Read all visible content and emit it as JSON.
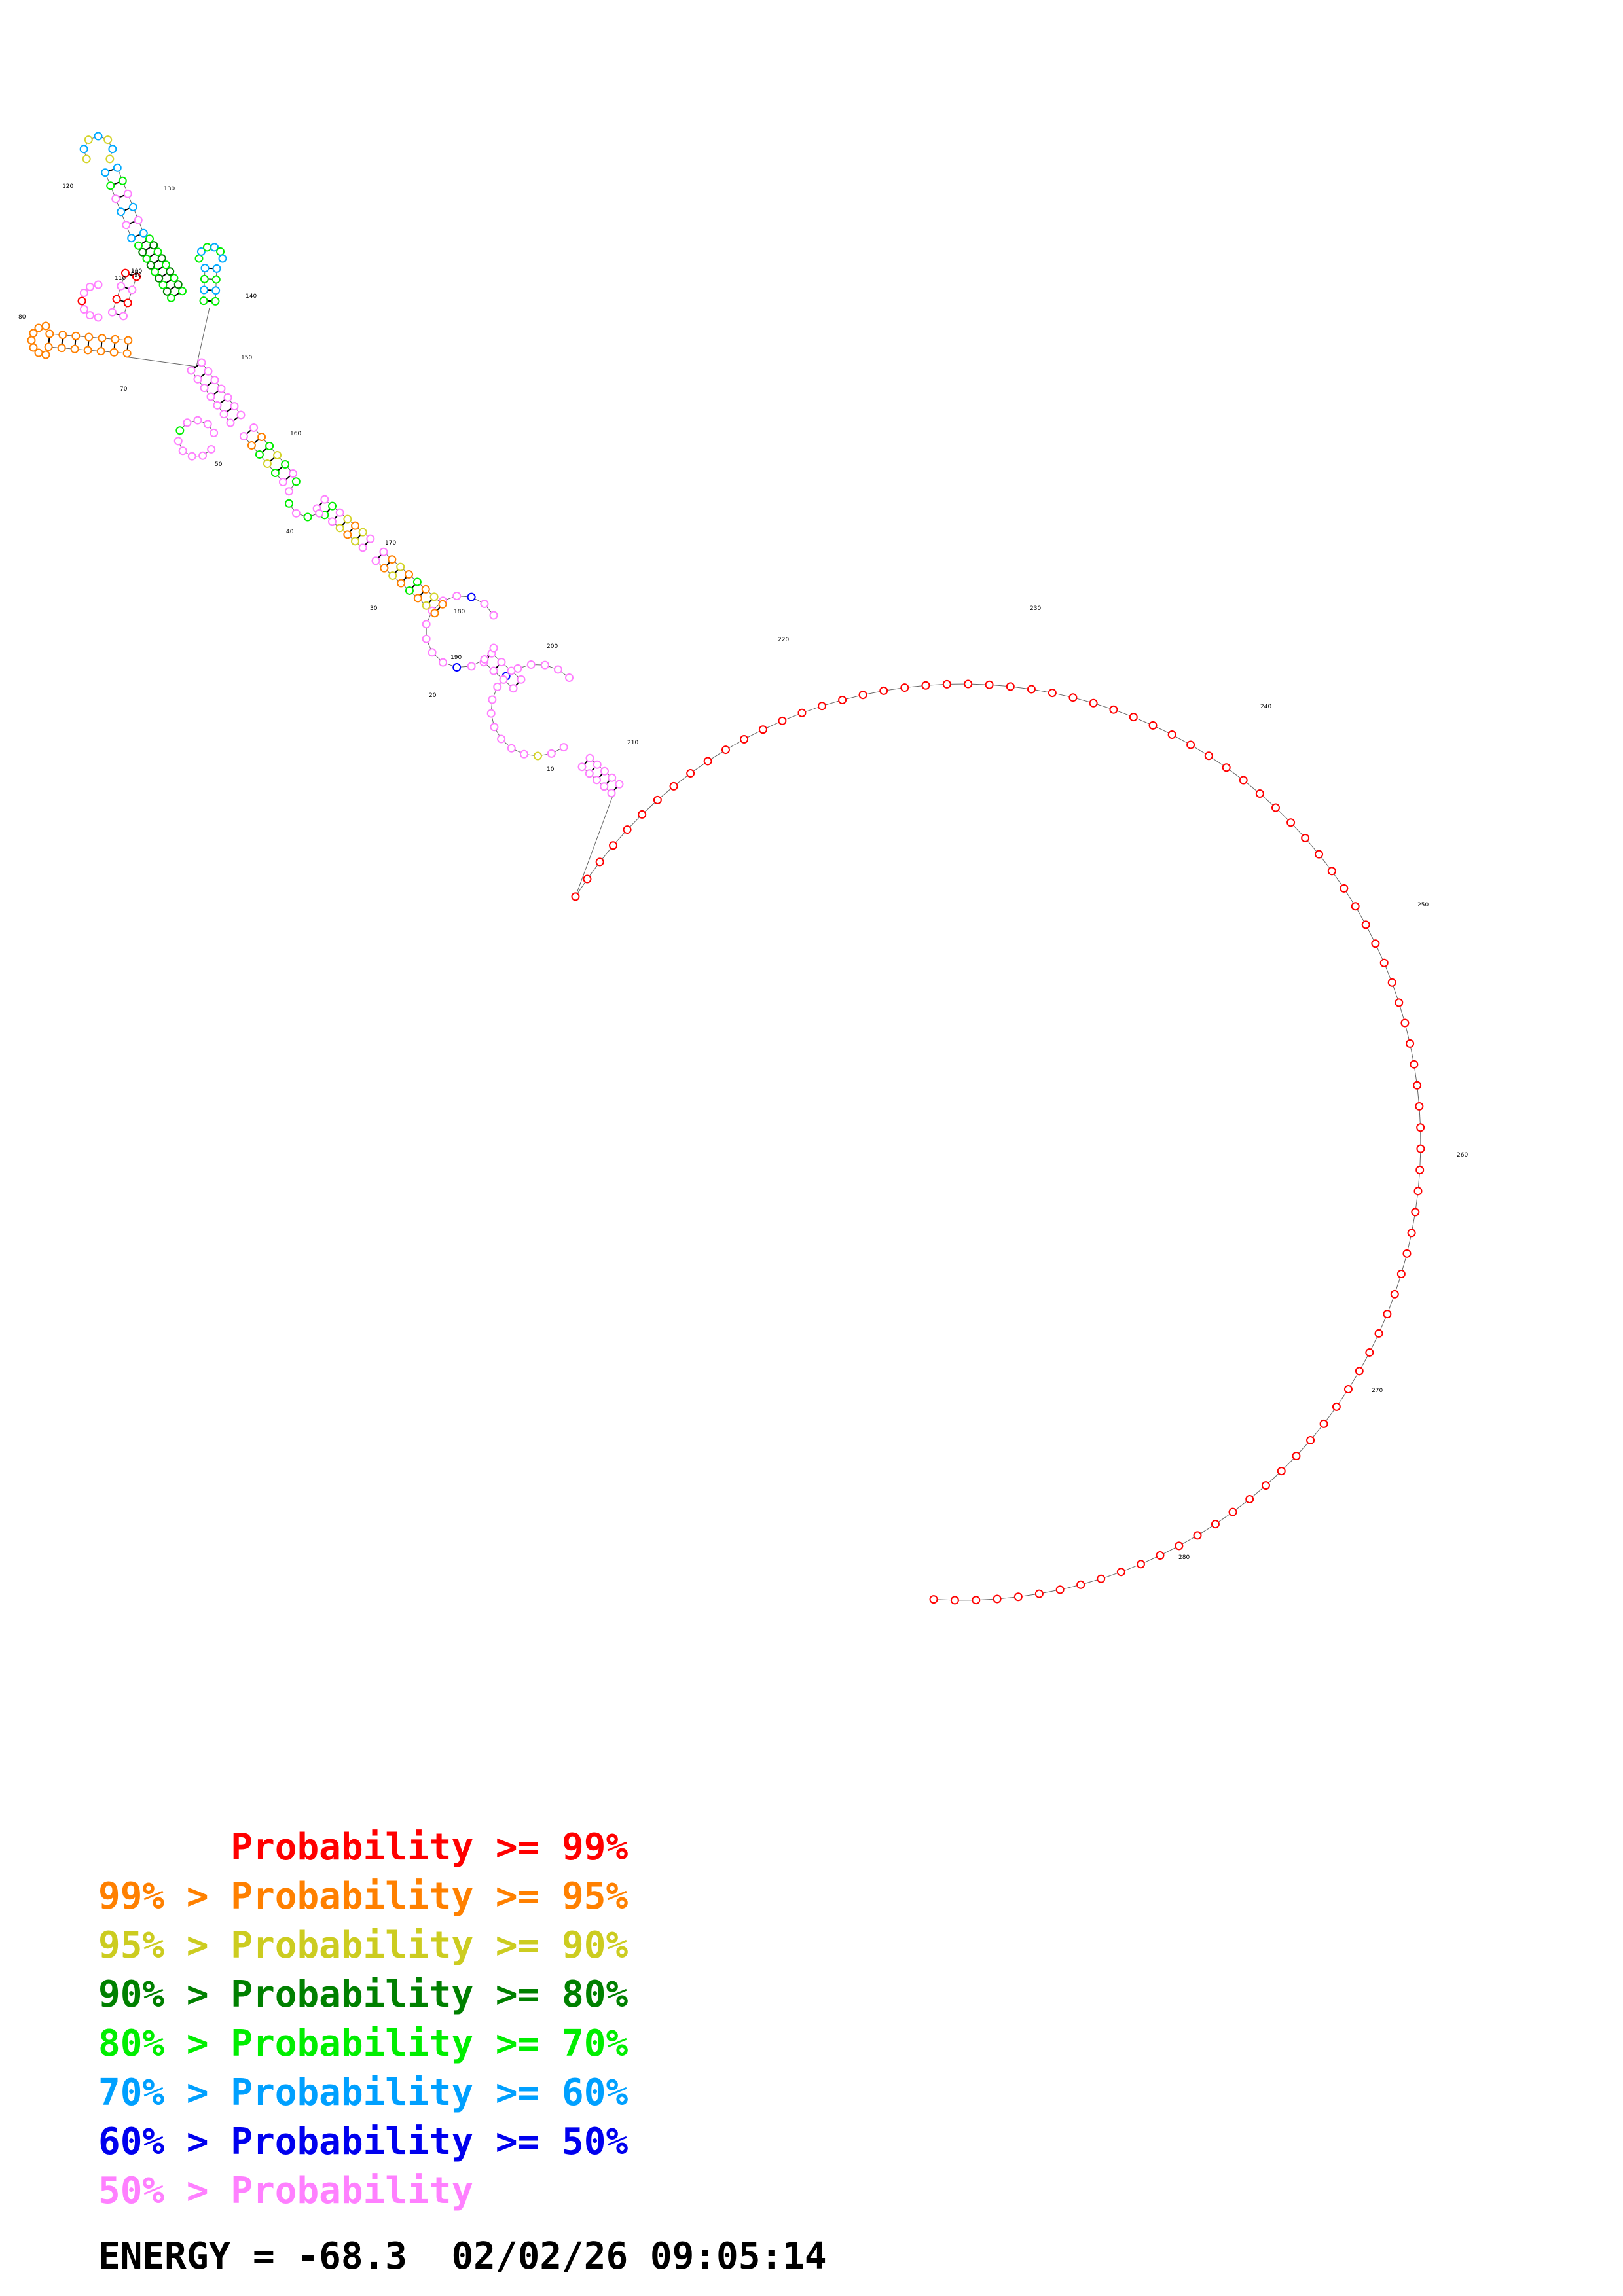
{
  "diagram": {
    "type": "rna-secondary-structure",
    "position_labels": [
      "10",
      "20",
      "30",
      "40",
      "50",
      "60",
      "70",
      "80",
      "90",
      "100",
      "110",
      "120",
      "130",
      "140",
      "150",
      "160",
      "170",
      "180",
      "190",
      "200",
      "210",
      "220",
      "230",
      "240",
      "250",
      "260",
      "270",
      "280"
    ],
    "base_colors": [
      "#ff0000",
      "#ff8000",
      "#d4d42a",
      "#008000",
      "#00ee00",
      "#00aaff",
      "#0000ff",
      "#ff80ff"
    ],
    "backbone_color": "#808080",
    "pair_color": "#000000"
  },
  "legend": [
    {
      "prefix": "",
      "label": "Probability >= 99%",
      "color": "#ff0000"
    },
    {
      "prefix": "99% > ",
      "label": "Probability >= 95%",
      "color": "#ff8000"
    },
    {
      "prefix": "95% > ",
      "label": "Probability >= 90%",
      "color": "#cccc20"
    },
    {
      "prefix": "90% > ",
      "label": "Probability >= 80%",
      "color": "#008000"
    },
    {
      "prefix": "80% > ",
      "label": "Probability >= 70%",
      "color": "#00ee00"
    },
    {
      "prefix": "70% > ",
      "label": "Probability >= 60%",
      "color": "#00a0ff"
    },
    {
      "prefix": "60% > ",
      "label": "Probability >= 50%",
      "color": "#0000ee"
    },
    {
      "prefix": "50% > ",
      "label": "Probability",
      "color": "#ff80ff"
    }
  ],
  "footer": {
    "energy_label": "ENERGY = ",
    "energy_value": "-68.3",
    "timestamp": "02/02/26 09:05:14"
  }
}
